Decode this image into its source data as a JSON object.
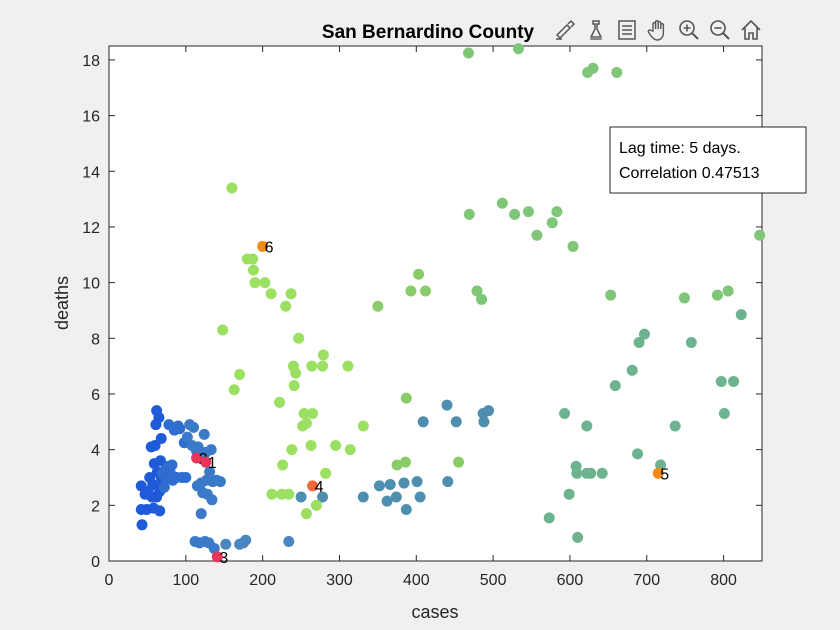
{
  "toolbar": {
    "tools": [
      "brush-icon",
      "data-cursor-icon",
      "legend-icon",
      "pan-hand-icon",
      "zoom-in-icon",
      "zoom-out-icon",
      "home-icon"
    ]
  },
  "chart_data": {
    "type": "scatter",
    "title": "San Bernardino County",
    "xlabel": "cases",
    "ylabel": "deaths",
    "xlim": [
      0,
      850
    ],
    "ylim": [
      0,
      18.5
    ],
    "xticks": [
      "0",
      "100",
      "200",
      "300",
      "400",
      "500",
      "600",
      "700",
      "800"
    ],
    "yticks": [
      "0",
      "2",
      "4",
      "6",
      "8",
      "10",
      "12",
      "14",
      "16",
      "18"
    ],
    "grid": false,
    "annotation": [
      "Lag time: 5 days.",
      "Correlation 0.47513"
    ],
    "points": [
      [
        43,
        1.3,
        "#1f5bd8"
      ],
      [
        42,
        1.85,
        "#1f5bd8"
      ],
      [
        42,
        2.7,
        "#1f5bd8"
      ],
      [
        47,
        2.4,
        "#1f5bd8"
      ],
      [
        49,
        1.85,
        "#1f5bd8"
      ],
      [
        51,
        2.5,
        "#1f5bd8"
      ],
      [
        53,
        3.0,
        "#1f5bd8"
      ],
      [
        55,
        4.1,
        "#1f5bd8"
      ],
      [
        56,
        2.3,
        "#1f5bd8"
      ],
      [
        57,
        2.75,
        "#1f5bd8"
      ],
      [
        58,
        1.9,
        "#1f5bd8"
      ],
      [
        59,
        3.5,
        "#1f5bd8"
      ],
      [
        60,
        4.15,
        "#1f5bd8"
      ],
      [
        61,
        4.9,
        "#1f5bd8"
      ],
      [
        62,
        5.4,
        "#1f5bd8"
      ],
      [
        62,
        2.3,
        "#1f5bd8"
      ],
      [
        63,
        3.2,
        "#1f5bd8"
      ],
      [
        64,
        2.7,
        "#1f5bd8"
      ],
      [
        65,
        5.15,
        "#1f5bd8"
      ],
      [
        66,
        1.8,
        "#1f5bd8"
      ],
      [
        66,
        2.5,
        "#1f5bd8"
      ],
      [
        67,
        3.6,
        "#1f5bd8"
      ],
      [
        68,
        3.0,
        "#1f5bd8"
      ],
      [
        68,
        4.4,
        "#1f5bd8"
      ],
      [
        70,
        3.15,
        "#2f6dd0"
      ],
      [
        72,
        2.65,
        "#2f6dd0"
      ],
      [
        74,
        3.3,
        "#2f6dd0"
      ],
      [
        75,
        3.0,
        "#2f6dd0"
      ],
      [
        77,
        3.4,
        "#2f6dd0"
      ],
      [
        78,
        4.9,
        "#2f6dd0"
      ],
      [
        80,
        3.15,
        "#2f6dd0"
      ],
      [
        82,
        3.45,
        "#2f6dd0"
      ],
      [
        83,
        2.9,
        "#2f6dd0"
      ],
      [
        85,
        4.7,
        "#2f6dd0"
      ],
      [
        88,
        3.0,
        "#2f6dd0"
      ],
      [
        90,
        4.85,
        "#2f6dd0"
      ],
      [
        92,
        4.75,
        "#2f6dd0"
      ],
      [
        95,
        3.0,
        "#2f6dd0"
      ],
      [
        98,
        4.25,
        "#2f6dd0"
      ],
      [
        100,
        3.0,
        "#2f6dd0"
      ],
      [
        102,
        4.45,
        "#3a7ac8"
      ],
      [
        105,
        4.9,
        "#3a7ac8"
      ],
      [
        108,
        4.15,
        "#3a7ac8"
      ],
      [
        110,
        4.8,
        "#3a7ac8"
      ],
      [
        112,
        0.7,
        "#3a7ac8"
      ],
      [
        114,
        3.95,
        "#3a7ac8"
      ],
      [
        115,
        2.7,
        "#3a7ac8"
      ],
      [
        116,
        4.1,
        "#3a7ac8"
      ],
      [
        118,
        0.65,
        "#3a7ac8"
      ],
      [
        120,
        2.8,
        "#3a7ac8"
      ],
      [
        120,
        1.7,
        "#3a7ac8"
      ],
      [
        121,
        3.75,
        "#3a7ac8"
      ],
      [
        122,
        2.45,
        "#3a7ac8"
      ],
      [
        124,
        4.55,
        "#3a7ac8"
      ],
      [
        125,
        0.7,
        "#3a7ac8"
      ],
      [
        126,
        3.9,
        "#3a7ac8"
      ],
      [
        127,
        2.9,
        "#3a7ac8"
      ],
      [
        128,
        2.4,
        "#3a7ac8"
      ],
      [
        130,
        0.65,
        "#3a7ac8"
      ],
      [
        131,
        3.2,
        "#3a7ac8"
      ],
      [
        133,
        4.0,
        "#3a7ac8"
      ],
      [
        134,
        2.2,
        "#3a7ac8"
      ],
      [
        135,
        2.85,
        "#3a7ac8"
      ],
      [
        137,
        0.45,
        "#3a7ac8"
      ],
      [
        140,
        2.9,
        "#3a7ac8"
      ],
      [
        145,
        2.85,
        "#3a7ac8"
      ],
      [
        152,
        0.6,
        "#4a87c0"
      ],
      [
        170,
        0.6,
        "#4a87c0"
      ],
      [
        175,
        0.65,
        "#4a87c0"
      ],
      [
        178,
        0.75,
        "#4a87c0"
      ],
      [
        234,
        0.7,
        "#4a87c0"
      ],
      [
        250,
        2.3,
        "#4e8fb0"
      ],
      [
        278,
        2.3,
        "#4e8fb0"
      ],
      [
        331,
        2.3,
        "#4e8fb0"
      ],
      [
        352,
        2.7,
        "#4e8fb0"
      ],
      [
        362,
        2.15,
        "#4e8fb0"
      ],
      [
        366,
        2.75,
        "#4e8fb0"
      ],
      [
        374,
        2.3,
        "#4e8fb0"
      ],
      [
        384,
        2.8,
        "#4e8fb0"
      ],
      [
        387,
        1.85,
        "#4e8fb0"
      ],
      [
        401,
        2.85,
        "#4e8fb0"
      ],
      [
        405,
        2.3,
        "#4e8fb0"
      ],
      [
        409,
        5.0,
        "#4e8fb0"
      ],
      [
        440,
        5.6,
        "#4e8fb0"
      ],
      [
        441,
        2.85,
        "#4e8fb0"
      ],
      [
        452,
        5.0,
        "#4e8fb0"
      ],
      [
        487,
        5.3,
        "#4e8fb0"
      ],
      [
        488,
        5.0,
        "#4e8fb0"
      ],
      [
        494,
        5.4,
        "#4e8fb0"
      ],
      [
        148,
        8.3,
        "#9be060"
      ],
      [
        160,
        13.4,
        "#9be060"
      ],
      [
        163,
        6.15,
        "#9be060"
      ],
      [
        170,
        6.7,
        "#9be060"
      ],
      [
        180,
        10.85,
        "#9be060"
      ],
      [
        187,
        10.85,
        "#9be060"
      ],
      [
        188,
        10.45,
        "#9be060"
      ],
      [
        190,
        10.0,
        "#9be060"
      ],
      [
        203,
        10.0,
        "#9be060"
      ],
      [
        211,
        9.6,
        "#9be060"
      ],
      [
        212,
        2.4,
        "#9be060"
      ],
      [
        222,
        5.7,
        "#9be060"
      ],
      [
        225,
        2.4,
        "#9be060"
      ],
      [
        226,
        3.45,
        "#9be060"
      ],
      [
        230,
        9.15,
        "#9be060"
      ],
      [
        234,
        2.4,
        "#9be060"
      ],
      [
        237,
        9.6,
        "#9be060"
      ],
      [
        238,
        4.0,
        "#9be060"
      ],
      [
        240,
        7.0,
        "#9be060"
      ],
      [
        241,
        6.3,
        "#9be060"
      ],
      [
        243,
        6.75,
        "#9be060"
      ],
      [
        247,
        8.0,
        "#9be060"
      ],
      [
        252,
        4.85,
        "#9be060"
      ],
      [
        254,
        5.3,
        "#9be060"
      ],
      [
        257,
        1.7,
        "#9be060"
      ],
      [
        257,
        4.95,
        "#9be060"
      ],
      [
        263,
        4.15,
        "#9be060"
      ],
      [
        264,
        7.0,
        "#9be060"
      ],
      [
        265,
        5.3,
        "#9be060"
      ],
      [
        270,
        2.0,
        "#9be060"
      ],
      [
        278,
        7.0,
        "#9be060"
      ],
      [
        279,
        7.4,
        "#9be060"
      ],
      [
        282,
        3.15,
        "#9be060"
      ],
      [
        295,
        4.15,
        "#9be060"
      ],
      [
        311,
        7.0,
        "#9be060"
      ],
      [
        314,
        4.0,
        "#9be060"
      ],
      [
        331,
        4.85,
        "#9be060"
      ],
      [
        350,
        9.15,
        "#8acc6a"
      ],
      [
        375,
        3.45,
        "#8acc6a"
      ],
      [
        386,
        3.55,
        "#8acc6a"
      ],
      [
        387,
        5.85,
        "#8acc6a"
      ],
      [
        393,
        9.7,
        "#8acc6a"
      ],
      [
        403,
        10.3,
        "#8acc6a"
      ],
      [
        412,
        9.7,
        "#8acc6a"
      ],
      [
        455,
        3.55,
        "#8acc6a"
      ],
      [
        468,
        18.25,
        "#7fc678"
      ],
      [
        469,
        12.45,
        "#7fc678"
      ],
      [
        479,
        9.7,
        "#7fc678"
      ],
      [
        485,
        9.4,
        "#7fc678"
      ],
      [
        512,
        12.85,
        "#7fc678"
      ],
      [
        528,
        12.45,
        "#7fc678"
      ],
      [
        533,
        18.4,
        "#7fc678"
      ],
      [
        546,
        12.55,
        "#7fc678"
      ],
      [
        557,
        11.7,
        "#7fc678"
      ],
      [
        577,
        12.15,
        "#7fc678"
      ],
      [
        583,
        12.55,
        "#7fc678"
      ],
      [
        604,
        11.3,
        "#7fc678"
      ],
      [
        623,
        17.55,
        "#7fc678"
      ],
      [
        630,
        17.7,
        "#7fc678"
      ],
      [
        661,
        17.55,
        "#7fc678"
      ],
      [
        653,
        9.55,
        "#7fc678"
      ],
      [
        749,
        9.45,
        "#7fc678"
      ],
      [
        792,
        9.55,
        "#7fc678"
      ],
      [
        806,
        9.7,
        "#7fc678"
      ],
      [
        847,
        11.7,
        "#7fc678"
      ],
      [
        573,
        1.55,
        "#6eb390"
      ],
      [
        593,
        5.3,
        "#6eb390"
      ],
      [
        599,
        2.4,
        "#6eb390"
      ],
      [
        608,
        3.4,
        "#6eb390"
      ],
      [
        609,
        3.15,
        "#6eb390"
      ],
      [
        610,
        0.85,
        "#6eb390"
      ],
      [
        622,
        4.85,
        "#6eb390"
      ],
      [
        622,
        3.15,
        "#6eb390"
      ],
      [
        627,
        3.15,
        "#6eb390"
      ],
      [
        642,
        3.15,
        "#6eb390"
      ],
      [
        659,
        6.3,
        "#6eb390"
      ],
      [
        681,
        6.85,
        "#6eb390"
      ],
      [
        688,
        3.85,
        "#6eb390"
      ],
      [
        690,
        7.85,
        "#6eb390"
      ],
      [
        697,
        8.15,
        "#6eb390"
      ],
      [
        737,
        4.85,
        "#6eb390"
      ],
      [
        758,
        7.85,
        "#6eb390"
      ],
      [
        718,
        3.45,
        "#6eb390"
      ],
      [
        797,
        6.45,
        "#6eb390"
      ],
      [
        801,
        5.3,
        "#6eb390"
      ],
      [
        813,
        6.45,
        "#6eb390"
      ],
      [
        823,
        8.85,
        "#6eb390"
      ],
      [
        114,
        3.7,
        "#e8365a",
        "2"
      ],
      [
        126,
        3.55,
        "#e8365a",
        "1"
      ],
      [
        141,
        0.15,
        "#e8365a",
        "3"
      ],
      [
        265,
        2.7,
        "#f06a3a",
        "4"
      ],
      [
        200,
        11.3,
        "#f08a1a",
        "6"
      ],
      [
        715,
        3.15,
        "#f08a1a",
        "5"
      ]
    ]
  }
}
